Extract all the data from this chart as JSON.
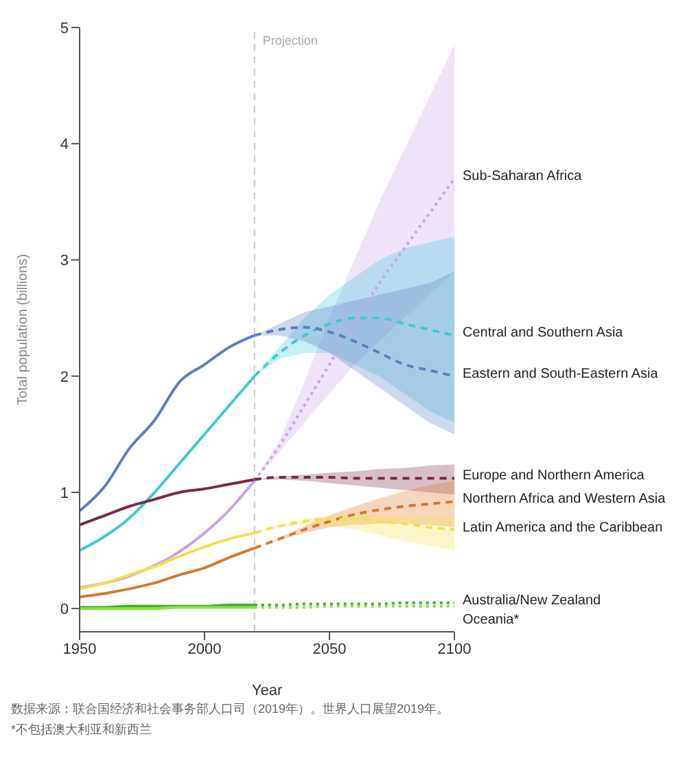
{
  "chart_data": {
    "type": "line",
    "xlabel": "Year",
    "ylabel": "Total population (billions)",
    "xlim": [
      1950,
      2100
    ],
    "xticks": [
      1950,
      2000,
      2050,
      2100
    ],
    "ylim": [
      -0.2,
      5
    ],
    "yticks": [
      0,
      1,
      2,
      3,
      4,
      5
    ],
    "grid": false,
    "legend": false,
    "marker": "none",
    "ref_lines": [
      {
        "axis": "x",
        "value": 2020,
        "label": "Projection",
        "color": "#c8c8c8",
        "line_style": "dashed"
      }
    ],
    "annotations": [
      "数据来源：联合国经济和社会事务部人口司（2019年）。世界人口展望2019年。",
      "*不包括澳大利亚和新西兰"
    ],
    "series": [
      {
        "color": "#5b7fbf",
        "line_style": "solid",
        "x": [
          1950,
          1960,
          1970,
          1980,
          1990,
          2000,
          2010,
          2020
        ],
        "values": [
          0.84,
          1.05,
          1.38,
          1.62,
          1.95,
          2.1,
          2.25,
          2.35
        ]
      },
      {
        "color": "#3ec9d6",
        "line_style": "solid",
        "x": [
          1950,
          1960,
          1970,
          1980,
          1990,
          2000,
          2010,
          2020
        ],
        "values": [
          0.5,
          0.62,
          0.78,
          1.0,
          1.25,
          1.5,
          1.75,
          2.0
        ]
      },
      {
        "color": "#c9a3e3",
        "line_style": "solid",
        "x": [
          1950,
          1960,
          1970,
          1980,
          1990,
          2000,
          2010,
          2020
        ],
        "values": [
          0.18,
          null,
          0.28,
          0.37,
          0.49,
          0.65,
          0.85,
          1.1
        ]
      },
      {
        "color": "#7a2a45",
        "line_style": "solid",
        "x": [
          1950,
          1960,
          1970,
          1980,
          1990,
          2000,
          2010,
          2020
        ],
        "values": [
          0.72,
          0.8,
          0.88,
          0.94,
          1.0,
          1.03,
          1.07,
          1.11
        ]
      },
      {
        "color": "#d9772b",
        "line_style": "solid",
        "x": [
          1950,
          1960,
          1970,
          1980,
          1990,
          2000,
          2010,
          2020
        ],
        "values": [
          0.1,
          0.13,
          0.17,
          0.22,
          0.29,
          0.35,
          0.44,
          0.52
        ]
      },
      {
        "color": "#f2e04a",
        "line_style": "solid",
        "x": [
          1950,
          1960,
          1970,
          1980,
          1990,
          2000,
          2010,
          2020
        ],
        "values": [
          0.17,
          0.22,
          0.29,
          0.36,
          0.45,
          0.53,
          0.6,
          0.65
        ]
      },
      {
        "color": "#2db82d",
        "line_style": "solid",
        "x": [
          1950,
          1960,
          1970,
          1980,
          1990,
          2000,
          2010,
          2020
        ],
        "values": [
          0.01,
          0.01,
          0.02,
          0.02,
          0.02,
          0.02,
          0.03,
          0.03
        ]
      },
      {
        "color": "#8ee03a",
        "line_style": "solid",
        "x": [
          1950,
          1960,
          1970,
          1980,
          1990,
          2000,
          2010,
          2020
        ],
        "values": [
          0.0,
          0.0,
          0.0,
          0.0,
          0.01,
          0.01,
          0.01,
          0.01
        ]
      },
      {
        "name": "Sub-Saharan Africa",
        "color": "#c9a3e3",
        "line_style": "dotted",
        "x": [
          2020,
          2030,
          2040,
          2050,
          2060,
          2070,
          2080,
          2090,
          2100
        ],
        "values": [
          1.1,
          1.4,
          1.75,
          2.1,
          2.45,
          2.8,
          3.1,
          3.4,
          3.7
        ],
        "lower": [
          1.1,
          1.35,
          1.6,
          1.85,
          2.1,
          2.3,
          2.5,
          2.7,
          2.9
        ],
        "upper": [
          1.1,
          1.45,
          1.95,
          2.5,
          3.0,
          3.5,
          3.95,
          4.4,
          4.85
        ]
      },
      {
        "name": "Central and Southern Asia",
        "color": "#3ec9d6",
        "line_style": "dashed",
        "x": [
          2020,
          2030,
          2040,
          2050,
          2060,
          2070,
          2080,
          2090,
          2100
        ],
        "values": [
          2.0,
          2.2,
          2.35,
          2.45,
          2.5,
          2.5,
          2.45,
          2.4,
          2.35
        ],
        "lower": [
          2.0,
          2.15,
          2.2,
          2.2,
          2.1,
          2.0,
          1.85,
          1.7,
          1.6
        ],
        "upper": [
          2.0,
          2.25,
          2.5,
          2.7,
          2.85,
          3.0,
          3.1,
          3.15,
          3.2
        ]
      },
      {
        "name": "Eastern and South-Eastern Asia",
        "color": "#5b7fbf",
        "line_style": "dashed",
        "x": [
          2020,
          2030,
          2040,
          2050,
          2060,
          2070,
          2080,
          2090,
          2100
        ],
        "values": [
          2.35,
          2.4,
          2.42,
          2.38,
          2.3,
          2.2,
          2.1,
          2.05,
          2.0
        ],
        "lower": [
          2.35,
          2.35,
          2.3,
          2.2,
          2.05,
          1.9,
          1.75,
          1.6,
          1.5
        ],
        "upper": [
          2.35,
          2.45,
          2.55,
          2.6,
          2.65,
          2.7,
          2.75,
          2.8,
          2.9
        ]
      },
      {
        "name": "Europe and Northern America",
        "color": "#7a2a45",
        "line_style": "dashed",
        "x": [
          2020,
          2030,
          2040,
          2050,
          2060,
          2070,
          2080,
          2090,
          2100
        ],
        "values": [
          1.11,
          1.13,
          1.13,
          1.13,
          1.12,
          1.12,
          1.12,
          1.12,
          1.12
        ],
        "lower": [
          1.11,
          1.11,
          1.1,
          1.08,
          1.06,
          1.04,
          1.02,
          1.0,
          0.98
        ],
        "upper": [
          1.11,
          1.14,
          1.15,
          1.17,
          1.18,
          1.2,
          1.21,
          1.23,
          1.24
        ]
      },
      {
        "name": "Northern Africa and Western Asia",
        "color": "#d9772b",
        "line_style": "dashed",
        "x": [
          2020,
          2030,
          2040,
          2050,
          2060,
          2070,
          2080,
          2090,
          2100
        ],
        "values": [
          0.52,
          0.6,
          0.68,
          0.75,
          0.81,
          0.85,
          0.88,
          0.9,
          0.92
        ],
        "lower": [
          0.52,
          0.59,
          0.65,
          0.7,
          0.72,
          0.73,
          0.73,
          0.72,
          0.7
        ],
        "upper": [
          0.52,
          0.61,
          0.71,
          0.8,
          0.88,
          0.95,
          1.01,
          1.06,
          1.1
        ]
      },
      {
        "name": "Latin America and the Caribbean",
        "color": "#f2e04a",
        "line_style": "dashed",
        "x": [
          2020,
          2030,
          2040,
          2050,
          2060,
          2070,
          2080,
          2090,
          2100
        ],
        "values": [
          0.65,
          0.71,
          0.75,
          0.77,
          0.77,
          0.75,
          0.73,
          0.7,
          0.68
        ],
        "lower": [
          0.65,
          0.7,
          0.72,
          0.71,
          0.68,
          0.63,
          0.58,
          0.54,
          0.5
        ],
        "upper": [
          0.65,
          0.72,
          0.77,
          0.8,
          0.81,
          0.81,
          0.81,
          0.8,
          0.8
        ]
      },
      {
        "name": "Australia/New Zealand",
        "color": "#2db82d",
        "line_style": "dotted",
        "x": [
          2020,
          2030,
          2040,
          2050,
          2060,
          2070,
          2080,
          2090,
          2100
        ],
        "values": [
          0.03,
          0.03,
          0.04,
          0.04,
          0.04,
          0.04,
          0.05,
          0.05,
          0.05
        ]
      },
      {
        "name": "Oceania*",
        "color": "#8ee03a",
        "line_style": "dotted",
        "x": [
          2020,
          2030,
          2040,
          2050,
          2060,
          2070,
          2080,
          2090,
          2100
        ],
        "values": [
          0.01,
          0.01,
          0.01,
          0.02,
          0.02,
          0.02,
          0.02,
          0.02,
          0.02
        ]
      }
    ]
  }
}
